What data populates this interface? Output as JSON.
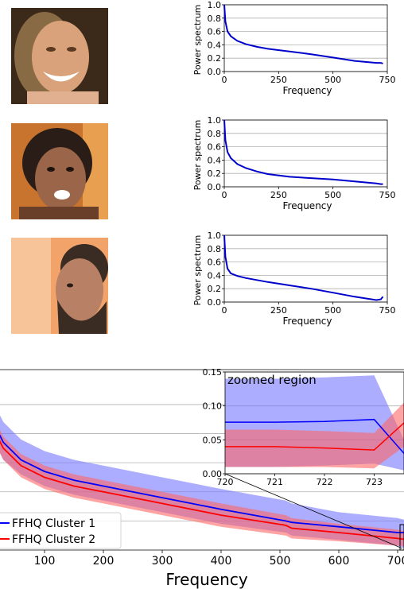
{
  "faces": [
    {
      "description_icon": "face-photo-1",
      "palette": [
        "#3b2a1a",
        "#d9a27a",
        "#c98a5e"
      ]
    },
    {
      "description_icon": "face-photo-2",
      "palette": [
        "#c8742e",
        "#8c5a3f",
        "#2a1d17"
      ]
    },
    {
      "description_icon": "face-photo-3",
      "palette": [
        "#f2a36a",
        "#b88064",
        "#3a2b23"
      ]
    }
  ],
  "chart_data": [
    {
      "type": "line",
      "ylabel": "Power spectrum",
      "xlabel": "Frequency",
      "xticks": [
        "0",
        "250",
        "500",
        "750"
      ],
      "yticks": [
        "0.0",
        "0.2",
        "0.4",
        "0.6",
        "0.8",
        "1.0"
      ],
      "xlim": [
        0,
        750
      ],
      "ylim": [
        0,
        1.0
      ],
      "x": [
        0,
        5,
        15,
        30,
        60,
        100,
        150,
        200,
        300,
        400,
        500,
        600,
        700,
        720,
        730
      ],
      "values": [
        1.0,
        0.75,
        0.6,
        0.53,
        0.46,
        0.41,
        0.37,
        0.34,
        0.3,
        0.26,
        0.21,
        0.16,
        0.13,
        0.13,
        0.12
      ],
      "color": "#0000cc"
    },
    {
      "type": "line",
      "ylabel": "Power spectrum",
      "xlabel": "Frequency",
      "xticks": [
        "0",
        "250",
        "500",
        "750"
      ],
      "yticks": [
        "0.0",
        "0.2",
        "0.4",
        "0.6",
        "0.8",
        "1.0"
      ],
      "xlim": [
        0,
        750
      ],
      "ylim": [
        0,
        1.0
      ],
      "x": [
        0,
        5,
        15,
        30,
        60,
        100,
        150,
        200,
        300,
        400,
        500,
        600,
        700,
        720,
        730
      ],
      "values": [
        1.0,
        0.7,
        0.52,
        0.43,
        0.34,
        0.28,
        0.23,
        0.19,
        0.15,
        0.13,
        0.11,
        0.08,
        0.05,
        0.04,
        0.04
      ],
      "color": "#0000cc"
    },
    {
      "type": "line",
      "ylabel": "Power spectrum",
      "xlabel": "Frequency",
      "xticks": [
        "0",
        "250",
        "500",
        "750"
      ],
      "yticks": [
        "0.0",
        "0.2",
        "0.4",
        "0.6",
        "0.8",
        "1.0"
      ],
      "xlim": [
        0,
        750
      ],
      "ylim": [
        0,
        1.0
      ],
      "x": [
        0,
        5,
        15,
        30,
        60,
        100,
        150,
        200,
        300,
        400,
        500,
        600,
        700,
        720,
        730
      ],
      "values": [
        1.0,
        0.68,
        0.5,
        0.43,
        0.39,
        0.36,
        0.33,
        0.3,
        0.25,
        0.2,
        0.14,
        0.08,
        0.03,
        0.04,
        0.08
      ],
      "color": "#0000cc"
    },
    {
      "type": "area",
      "xlabel": "Frequency",
      "xticks": [
        "100",
        "200",
        "300",
        "400",
        "500",
        "600",
        "700"
      ],
      "xlim": [
        0,
        720
      ],
      "legend": {
        "placement": "lower-left"
      },
      "series": [
        {
          "name": "FFHQ Cluster 1",
          "color": "#0000ff",
          "band_color": "#7777ff",
          "x": [
            0,
            10,
            30,
            60,
            100,
            150,
            200,
            300,
            400,
            510,
            520,
            600,
            700,
            720
          ],
          "mean": [
            0.55,
            0.45,
            0.37,
            0.31,
            0.27,
            0.24,
            0.22,
            0.18,
            0.14,
            0.1,
            0.095,
            0.08,
            0.06,
            0.06
          ],
          "upper": [
            0.62,
            0.52,
            0.44,
            0.38,
            0.34,
            0.31,
            0.29,
            0.25,
            0.21,
            0.17,
            0.16,
            0.13,
            0.11,
            0.1
          ],
          "lower": [
            0.48,
            0.39,
            0.31,
            0.26,
            0.22,
            0.19,
            0.17,
            0.13,
            0.09,
            0.06,
            0.05,
            0.035,
            0.015,
            0.0
          ]
        },
        {
          "name": "FFHQ Cluster 2",
          "color": "#ff0000",
          "band_color": "#ff6666",
          "x": [
            0,
            10,
            30,
            60,
            100,
            150,
            200,
            300,
            400,
            510,
            520,
            600,
            700,
            720
          ],
          "mean": [
            0.53,
            0.43,
            0.35,
            0.29,
            0.25,
            0.22,
            0.2,
            0.16,
            0.12,
            0.085,
            0.075,
            0.06,
            0.04,
            0.035
          ],
          "upper": [
            0.57,
            0.47,
            0.39,
            0.33,
            0.29,
            0.26,
            0.24,
            0.2,
            0.16,
            0.12,
            0.11,
            0.09,
            0.07,
            0.06
          ],
          "lower": [
            0.49,
            0.39,
            0.31,
            0.25,
            0.21,
            0.18,
            0.16,
            0.12,
            0.08,
            0.05,
            0.04,
            0.03,
            0.015,
            0.01
          ]
        }
      ],
      "inset": {
        "title": "zoomed region",
        "xlim": [
          720,
          723.6
        ],
        "ylim": [
          0,
          0.15
        ],
        "xticks": [
          "720",
          "721",
          "722",
          "723"
        ],
        "yticks": [
          "0.00",
          "0.05",
          "0.10",
          "0.15"
        ],
        "series": [
          {
            "name": "FFHQ Cluster 1",
            "x": [
              720,
              721,
              722,
              723,
              723.6
            ],
            "mean": [
              0.076,
              0.076,
              0.077,
              0.08,
              0.03
            ],
            "upper": [
              0.14,
              0.14,
              0.142,
              0.145,
              0.05
            ],
            "lower": [
              0.01,
              0.01,
              0.012,
              0.015,
              0.005
            ]
          },
          {
            "name": "FFHQ Cluster 2",
            "x": [
              720,
              721,
              722,
              723,
              723.6
            ],
            "mean": [
              0.04,
              0.04,
              0.038,
              0.035,
              0.075
            ],
            "upper": [
              0.065,
              0.065,
              0.063,
              0.06,
              0.105
            ],
            "lower": [
              0.01,
              0.01,
              0.01,
              0.008,
              0.04
            ]
          }
        ]
      }
    }
  ]
}
